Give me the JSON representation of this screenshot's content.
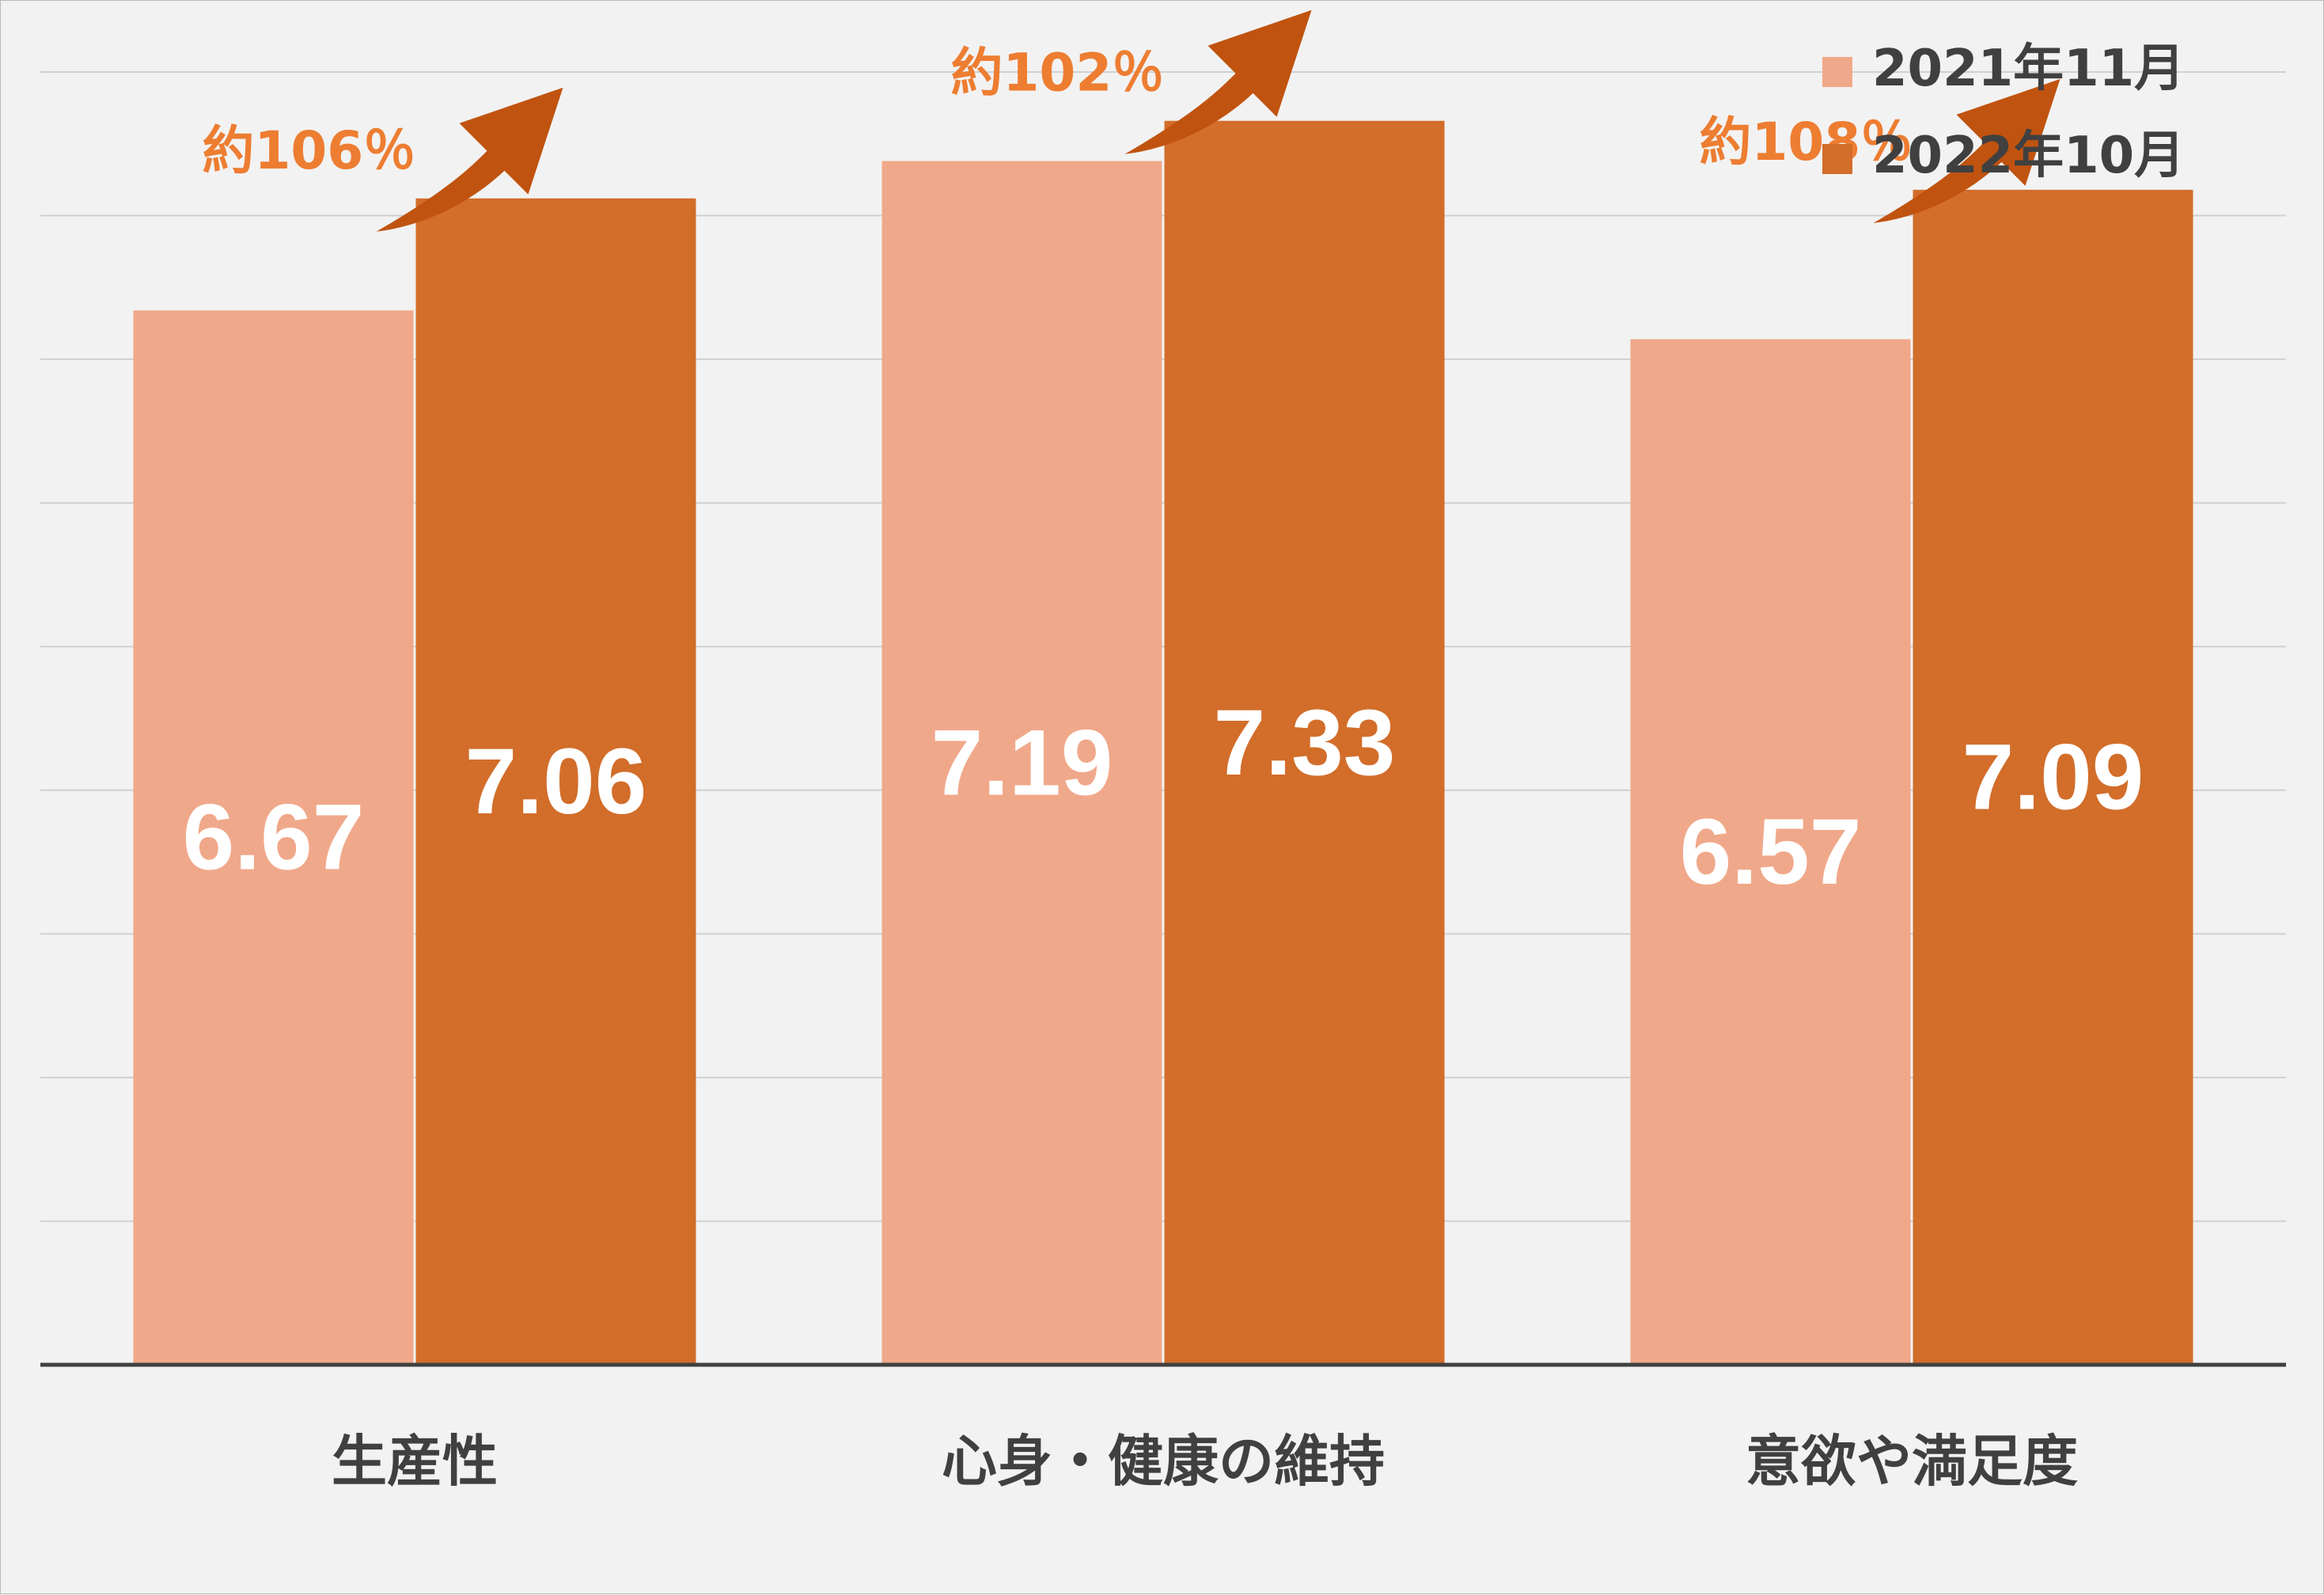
{
  "chart_data": {
    "type": "bar",
    "categories": [
      "生産性",
      "心身・健康の維持",
      "意欲や満足度"
    ],
    "series": [
      {
        "name": "2021年11月",
        "values": [
          6.67,
          7.19,
          6.57
        ],
        "color": "#f0a88a"
      },
      {
        "name": "2022年10月",
        "values": [
          7.06,
          7.33,
          7.09
        ],
        "color": "#d26d2a"
      }
    ],
    "annotations": [
      "約106％",
      "約102％",
      "約108％"
    ],
    "annotation_color": "#ed7d31",
    "arrow_color": "#c0530f",
    "ylim": [
      3,
      7.5
    ],
    "grid": true,
    "legend_position": "top-right",
    "title": "",
    "xlabel": "",
    "ylabel": ""
  }
}
